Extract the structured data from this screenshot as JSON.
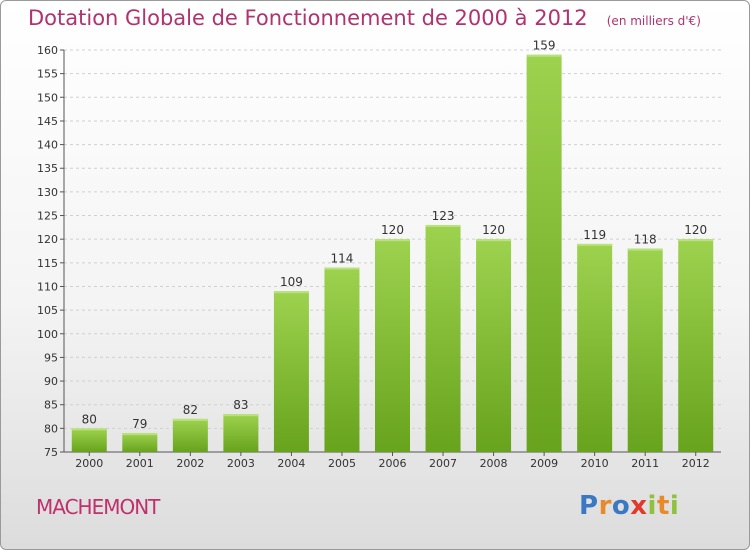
{
  "chart_data": {
    "type": "bar",
    "title": "Dotation Globale de Fonctionnement de 2000 à 2012",
    "subtitle": "(en milliers d'€)",
    "categories": [
      "2000",
      "2001",
      "2002",
      "2003",
      "2004",
      "2005",
      "2006",
      "2007",
      "2008",
      "2009",
      "2010",
      "2011",
      "2012"
    ],
    "values": [
      80,
      79,
      82,
      83,
      109,
      114,
      120,
      123,
      120,
      159,
      119,
      118,
      120
    ],
    "ylim": [
      75,
      160
    ],
    "yticks": [
      75,
      80,
      85,
      90,
      95,
      100,
      105,
      110,
      115,
      120,
      125,
      130,
      135,
      140,
      145,
      150,
      155,
      160
    ],
    "grid": true,
    "bar_color": "#8cc63f"
  },
  "commune": "MACHEMONT",
  "logo": "Proxiti"
}
